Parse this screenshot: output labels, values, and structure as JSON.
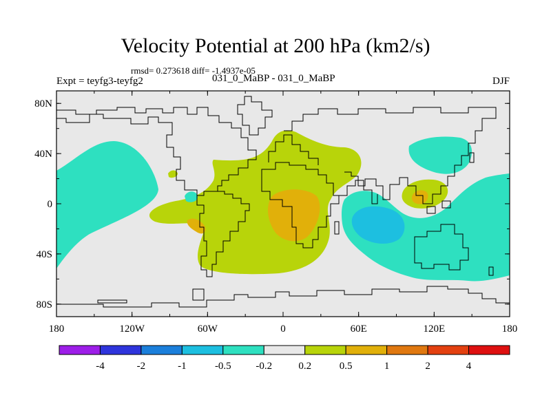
{
  "title": "Velocity Potential at 200 hPa (km2/s)",
  "stats": "rmsd= 0.273618 diff= -1.4937e-05",
  "expt": "Expt = teyfg3-teyfg2",
  "subtitle": "031_0_MaBP - 031_0_MaBP",
  "season": "DJF",
  "chart_data": {
    "type": "heatmap",
    "title": "Velocity Potential at 200 hPa (km2/s)",
    "x_ticks": [
      "180",
      "120W",
      "60W",
      "0",
      "60E",
      "120E",
      "180"
    ],
    "y_ticks": [
      "80N",
      "40N",
      "0",
      "40S",
      "80S"
    ],
    "xlim": [
      -180,
      180
    ],
    "ylim": [
      -90,
      90
    ],
    "colorbar_levels": [
      "-4",
      "-2",
      "-1",
      "-0.5",
      "-0.2",
      "0.2",
      "0.5",
      "1",
      "2",
      "4"
    ],
    "colorbar_colors": [
      "#9d1ee8",
      "#2e34dc",
      "#1b7fdb",
      "#1dbfe0",
      "#2ee0c0",
      "#e8e8e8",
      "#b8d40a",
      "#e1b00a",
      "#e07810",
      "#e34010",
      "#de1010"
    ],
    "regions": [
      {
        "level": "-0.5 to -0.2",
        "lon": [
          -180,
          -150
        ],
        "lat": [
          -20,
          40
        ]
      },
      {
        "level": "0.2 to 0.5",
        "lon": [
          -100,
          60
        ],
        "lat": [
          -60,
          60
        ]
      },
      {
        "level": "0.5 to 1",
        "lon": [
          -10,
          30
        ],
        "lat": [
          -30,
          10
        ]
      },
      {
        "level": "-0.5 to -0.2",
        "lon": [
          50,
          180
        ],
        "lat": [
          -65,
          20
        ]
      },
      {
        "level": "-1 to -0.5",
        "lon": [
          55,
          85
        ],
        "lat": [
          -30,
          -5
        ]
      },
      {
        "level": "-0.5 to -0.2",
        "lon": [
          100,
          145
        ],
        "lat": [
          30,
          55
        ]
      },
      {
        "level": "0.2 to 0.5",
        "lon": [
          95,
          125
        ],
        "lat": [
          -5,
          20
        ]
      }
    ]
  }
}
